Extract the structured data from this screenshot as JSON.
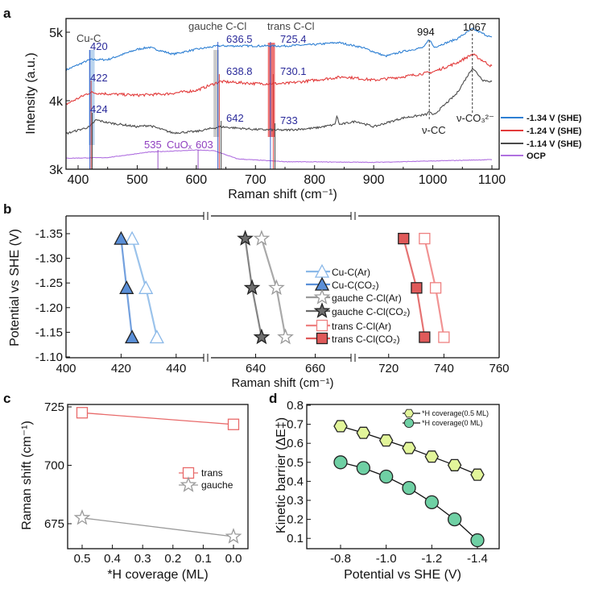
{
  "chart_data": [
    {
      "panel": "a",
      "type": "line",
      "xlabel": "Raman shift (cm⁻¹)",
      "ylabel": "Intensity (a.u.)",
      "xlim": [
        380,
        1110
      ],
      "ylim": [
        3000,
        5200
      ],
      "xticks": [
        "400",
        "500",
        "600",
        "700",
        "800",
        "900",
        "1000",
        "1100"
      ],
      "yticks": [
        {
          "value": 3000,
          "label": "3k"
        },
        {
          "value": 4000,
          "label": "4k"
        },
        {
          "value": 5000,
          "label": "5k"
        }
      ],
      "legend_position": "right",
      "series": [
        {
          "name": "-1.34 V (SHE)",
          "color": "#2d7fd3",
          "points": [
            [
              380,
              4450
            ],
            [
              420,
              4600
            ],
            [
              450,
              4600
            ],
            [
              500,
              4750
            ],
            [
              520,
              4780
            ],
            [
              560,
              4680
            ],
            [
              600,
              4750
            ],
            [
              636,
              4800
            ],
            [
              700,
              4800
            ],
            [
              750,
              4800
            ],
            [
              800,
              4820
            ],
            [
              840,
              4850
            ],
            [
              880,
              4780
            ],
            [
              920,
              4650
            ],
            [
              950,
              4720
            ],
            [
              985,
              4780
            ],
            [
              994,
              4900
            ],
            [
              1002,
              4780
            ],
            [
              1040,
              4900
            ],
            [
              1067,
              5050
            ],
            [
              1100,
              4920
            ]
          ]
        },
        {
          "name": "-1.24 V (SHE)",
          "color": "#e23b3b",
          "points": [
            [
              380,
              3950
            ],
            [
              420,
              4120
            ],
            [
              450,
              4100
            ],
            [
              500,
              4080
            ],
            [
              550,
              4100
            ],
            [
              600,
              4150
            ],
            [
              640,
              4280
            ],
            [
              700,
              4250
            ],
            [
              750,
              4250
            ],
            [
              800,
              4300
            ],
            [
              850,
              4350
            ],
            [
              900,
              4300
            ],
            [
              950,
              4350
            ],
            [
              1000,
              4420
            ],
            [
              1040,
              4550
            ],
            [
              1067,
              4680
            ],
            [
              1100,
              4500
            ]
          ]
        },
        {
          "name": "-1.14 V (SHE)",
          "color": "#4a4a4a",
          "points": [
            [
              380,
              3520
            ],
            [
              420,
              3620
            ],
            [
              430,
              3720
            ],
            [
              450,
              3680
            ],
            [
              500,
              3620
            ],
            [
              520,
              3640
            ],
            [
              560,
              3530
            ],
            [
              600,
              3550
            ],
            [
              640,
              3620
            ],
            [
              700,
              3580
            ],
            [
              750,
              3570
            ],
            [
              800,
              3600
            ],
            [
              834,
              3650
            ],
            [
              838,
              3780
            ],
            [
              842,
              3650
            ],
            [
              870,
              3700
            ],
            [
              900,
              3620
            ],
            [
              950,
              3750
            ],
            [
              990,
              3800
            ],
            [
              994,
              3850
            ],
            [
              1000,
              3780
            ],
            [
              1040,
              4100
            ],
            [
              1067,
              4480
            ],
            [
              1085,
              4300
            ],
            [
              1100,
              4280
            ]
          ]
        },
        {
          "name": "OCP",
          "color": "#b070e0",
          "points": [
            [
              380,
              3160
            ],
            [
              450,
              3170
            ],
            [
              520,
              3250
            ],
            [
              600,
              3280
            ],
            [
              630,
              3270
            ],
            [
              670,
              3150
            ],
            [
              750,
              3110
            ],
            [
              900,
              3100
            ],
            [
              1100,
              3140
            ]
          ]
        }
      ],
      "annotations": [
        {
          "text": "Cu-C",
          "x": 420
        },
        {
          "text": "420",
          "x": 420
        },
        {
          "text": "422",
          "x": 422
        },
        {
          "text": "424",
          "x": 424
        },
        {
          "text": "gauche C-Cl",
          "x": 636.5
        },
        {
          "text": "636.5",
          "x": 636.5
        },
        {
          "text": "638.8",
          "x": 638.8
        },
        {
          "text": "642",
          "x": 642
        },
        {
          "text": "trans C-Cl",
          "x": 725.4
        },
        {
          "text": "725.4",
          "x": 725.4
        },
        {
          "text": "730.1",
          "x": 730.1
        },
        {
          "text": "733",
          "x": 733
        },
        {
          "text": "994",
          "x": 994
        },
        {
          "text": "1067",
          "x": 1067
        },
        {
          "text": "ν-CC",
          "x": 994
        },
        {
          "text": "ν-CO₃²⁻",
          "x": 1067
        },
        {
          "text": "535",
          "x": 535
        },
        {
          "text": "CuOₓ",
          "x": 570
        },
        {
          "text": "603",
          "x": 603
        }
      ]
    },
    {
      "panel": "b",
      "type": "scatter",
      "xlabel": "Raman shift (cm⁻¹)",
      "ylabel": "Potential vs SHE (V)",
      "x_segments": [
        [
          400,
          450
        ],
        [
          625,
          672
        ],
        [
          709,
          760
        ]
      ],
      "ylim": [
        -1.1,
        -1.385
      ],
      "xticks": [
        400,
        420,
        440,
        640,
        660,
        720,
        740,
        760
      ],
      "yticks": [
        "-1.35",
        "-1.30",
        "-1.25",
        "-1.20",
        "-1.15",
        "-1.10"
      ],
      "legend_position": "center",
      "series": [
        {
          "name": "Cu-C(Ar)",
          "marker": "triangle-open",
          "color": "#8ab8e8",
          "points": [
            [
              424,
              -1.34
            ],
            [
              429,
              -1.24
            ],
            [
              433,
              -1.14
            ]
          ]
        },
        {
          "name": "Cu-C(CO₂)",
          "marker": "triangle-filled",
          "color": "#5a8fd8",
          "points": [
            [
              420,
              -1.34
            ],
            [
              422,
              -1.24
            ],
            [
              424,
              -1.14
            ]
          ]
        },
        {
          "name": "gauche C-Cl(Ar)",
          "marker": "star-open",
          "color": "#9a9a9a",
          "points": [
            [
              642,
              -1.34
            ],
            [
              647,
              -1.24
            ],
            [
              650,
              -1.14
            ]
          ]
        },
        {
          "name": "gauche C-Cl(CO₂)",
          "marker": "star-filled",
          "color": "#6e6e6e",
          "points": [
            [
              636.5,
              -1.34
            ],
            [
              638.8,
              -1.24
            ],
            [
              642,
              -1.14
            ]
          ]
        },
        {
          "name": "trans C-Cl(Ar)",
          "marker": "square-open",
          "color": "#ee8080",
          "points": [
            [
              733,
              -1.34
            ],
            [
              737,
              -1.24
            ],
            [
              740,
              -1.14
            ]
          ]
        },
        {
          "name": "trans C-Cl(CO₂)",
          "marker": "square-filled",
          "color": "#e05a5a",
          "points": [
            [
              725.4,
              -1.34
            ],
            [
              730.1,
              -1.24
            ],
            [
              733,
              -1.14
            ]
          ]
        }
      ]
    },
    {
      "panel": "c",
      "type": "line",
      "xlabel": "*H coverage (ML)",
      "ylabel": "Raman shift (cm⁻¹)",
      "xlim": [
        0.55,
        -0.05
      ],
      "ylim": [
        664.3,
        726
      ],
      "xticks": [
        "0.5",
        "0.4",
        "0.3",
        "0.2",
        "0.1",
        "0.0"
      ],
      "yticks": [
        "675",
        "700",
        "725"
      ],
      "legend_position": "center-right",
      "series": [
        {
          "name": "trans",
          "marker": "square-open",
          "color": "#e86a6a",
          "points": [
            [
              0.5,
              722.5
            ],
            [
              0.0,
              717.5
            ]
          ]
        },
        {
          "name": "gauche",
          "marker": "star-open",
          "color": "#9a9a9a",
          "points": [
            [
              0.5,
              677.5
            ],
            [
              0.0,
              669.5
            ]
          ]
        }
      ]
    },
    {
      "panel": "d",
      "type": "line",
      "xlabel": "Potential vs SHE (V)",
      "ylabel": "Kinetic barrier (ΔE‡)",
      "xlim": [
        -0.65,
        -1.495
      ],
      "ylim": [
        0.045,
        0.805
      ],
      "xticks": [
        "-0.8",
        "-1.0",
        "-1.2",
        "-1.4"
      ],
      "yticks": [
        "0.1",
        "0.2",
        "0.3",
        "0.4",
        "0.5",
        "0.6",
        "0.7",
        "0.8"
      ],
      "legend_position": "top-right",
      "x": [
        -0.8,
        -0.9,
        -1.0,
        -1.1,
        -1.2,
        -1.3,
        -1.4
      ],
      "series": [
        {
          "name": "*H coverage(0.5 ML)",
          "marker": "hexagon",
          "color": "#e2f59a",
          "values": [
            0.69,
            0.655,
            0.615,
            0.575,
            0.53,
            0.485,
            0.435
          ]
        },
        {
          "name": "*H coverage(0 ML)",
          "marker": "circle",
          "color": "#6fd0a4",
          "values": [
            0.5,
            0.47,
            0.425,
            0.365,
            0.29,
            0.2,
            0.09
          ]
        }
      ]
    }
  ],
  "panel_labels": [
    "a",
    "b",
    "c",
    "d"
  ]
}
